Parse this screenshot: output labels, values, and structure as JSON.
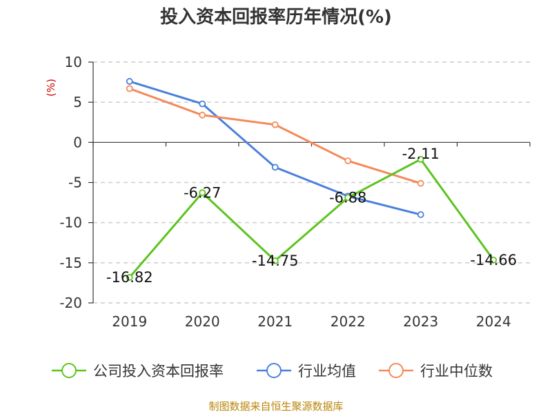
{
  "chart_data": {
    "type": "line",
    "title": "投入资本回报率历年情况(%)",
    "ylabel": "(%)",
    "categories": [
      "2019",
      "2020",
      "2021",
      "2022",
      "2023",
      "2024"
    ],
    "ylim": [
      -20,
      10
    ],
    "yticks": [
      10,
      5,
      0,
      -5,
      -10,
      -15,
      -20
    ],
    "grid": true,
    "legend_position": "bottom",
    "series": [
      {
        "name": "公司投入资本回报率",
        "color": "#5cc41e",
        "values": [
          -16.82,
          -6.27,
          -14.75,
          -6.88,
          -2.11,
          -14.66
        ],
        "labels": [
          "-16.82",
          "-6.27",
          "-14.75",
          "-6.88",
          "-2.11",
          "-14.66"
        ]
      },
      {
        "name": "行业均值",
        "color": "#4a7fdc",
        "values": [
          7.6,
          4.8,
          -3.1,
          -6.7,
          -9.0,
          null
        ]
      },
      {
        "name": "行业中位数",
        "color": "#f5895a",
        "values": [
          6.7,
          3.4,
          2.2,
          -2.3,
          -5.1,
          null
        ]
      }
    ]
  },
  "source_text": "制图数据来自恒生聚源数据库"
}
